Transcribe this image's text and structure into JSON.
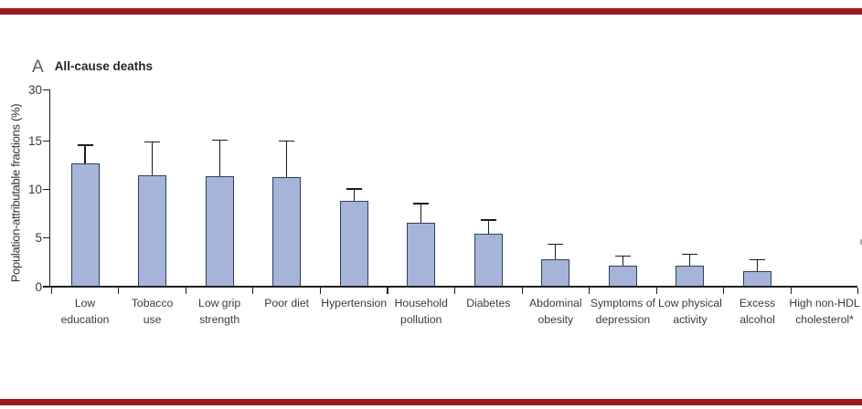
{
  "figure": {
    "panel_label": "A",
    "title": "All-cause deaths",
    "rule_color": "#9a1c1f"
  },
  "chart_data": {
    "type": "bar",
    "panel_label": "A",
    "title": "All-cause deaths",
    "ylabel": "Population-attributable fractions (%)",
    "xlabel": "",
    "ylim": [
      0,
      30
    ],
    "yticks": [
      0,
      5,
      10,
      15,
      30
    ],
    "y_axis_note": "segment between 15 and 30 is compressed",
    "grid": false,
    "legend": false,
    "error_bars": "upper whisker with cap",
    "categories": [
      "Low education",
      "Tobacco use",
      "Low grip strength",
      "Poor diet",
      "Hypertension",
      "Household pollution",
      "Diabetes",
      "Abdominal obesity",
      "Symptoms of depression",
      "Low physical activity",
      "Excess alcohol",
      "High non-HDL cholesterol*"
    ],
    "category_label_lines": [
      [
        "Low",
        "education"
      ],
      [
        "Tobacco",
        "use"
      ],
      [
        "Low grip",
        "strength"
      ],
      [
        "Poor diet"
      ],
      [
        "Hypertension"
      ],
      [
        "Household",
        "pollution"
      ],
      [
        "Diabetes"
      ],
      [
        "Abdominal",
        "obesity"
      ],
      [
        "Symptoms of",
        "depression"
      ],
      [
        "Low physical",
        "activity"
      ],
      [
        "Excess",
        "alcohol"
      ],
      [
        "High non-HDL",
        "cholesterol*"
      ]
    ],
    "values": [
      12.6,
      11.4,
      11.3,
      11.2,
      8.8,
      6.5,
      5.4,
      2.8,
      2.1,
      2.1,
      1.5,
      0
    ],
    "upper_ci": [
      14.5,
      14.8,
      15.0,
      14.9,
      10.0,
      8.5,
      6.8,
      4.3,
      3.1,
      3.3,
      2.7,
      null
    ],
    "bar_fill": "#a5b4d8",
    "bar_border": "#30405e",
    "axis_color": "#1f1f1f",
    "text_color": "#3b3b3b"
  }
}
